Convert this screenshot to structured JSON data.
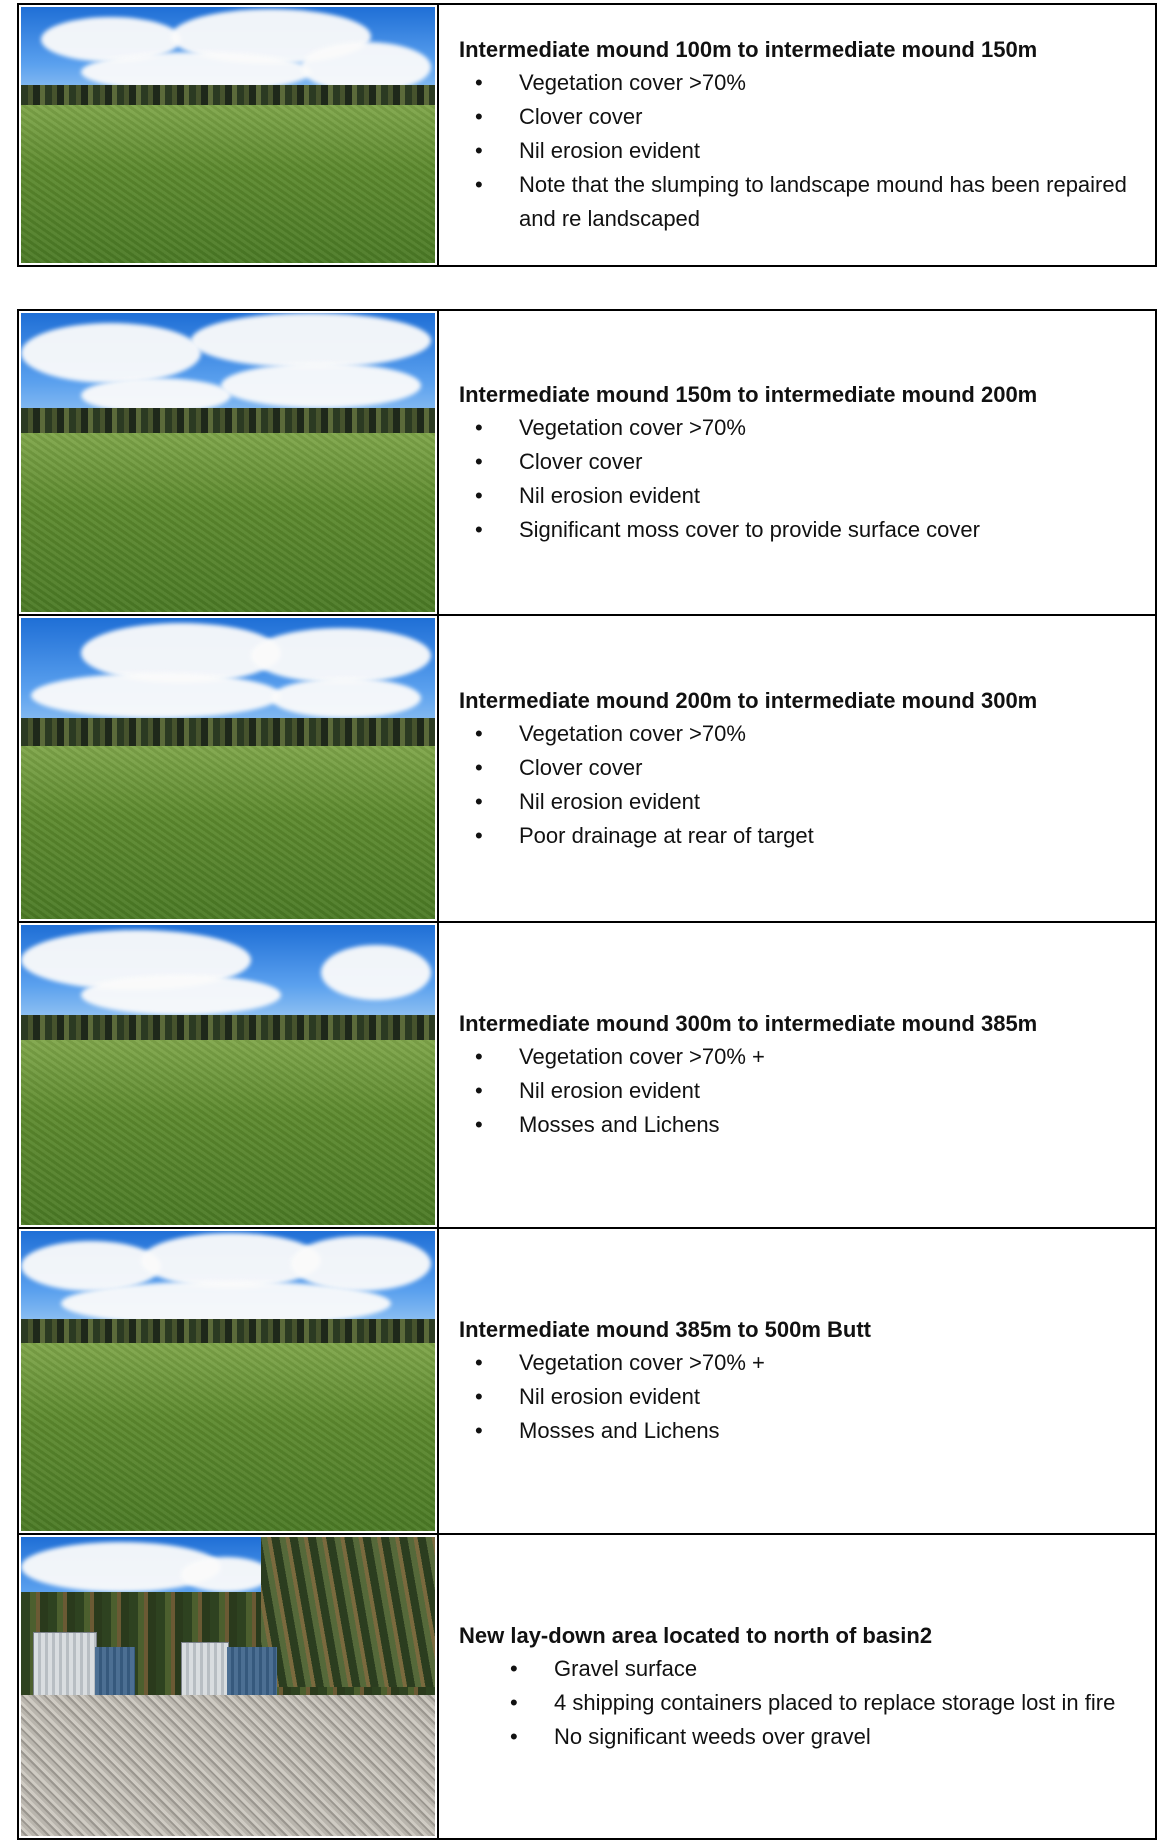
{
  "rows": [
    {
      "photo": "grass-field-photo",
      "heading": "Intermediate mound 100m to intermediate mound 150m",
      "bullets": [
        "Vegetation cover >70%",
        "Clover cover",
        "Nil erosion evident",
        "Note that the slumping to landscape mound has been repaired and re landscaped"
      ]
    },
    {
      "photo": "grass-field-photo",
      "heading": "Intermediate mound 150m to intermediate mound 200m",
      "bullets": [
        "Vegetation cover >70%",
        "Clover cover",
        "Nil erosion evident",
        "Significant moss cover to provide surface cover"
      ]
    },
    {
      "photo": "grass-field-photo",
      "heading": "Intermediate mound 200m to intermediate mound 300m",
      "bullets": [
        "Vegetation cover >70%",
        "Clover cover",
        "Nil erosion evident",
        "Poor drainage at rear of target"
      ]
    },
    {
      "photo": "grass-field-photo",
      "heading": "Intermediate mound 300m to intermediate mound 385m",
      "bullets": [
        "Vegetation cover >70% +",
        "Nil erosion evident",
        "Mosses and Lichens"
      ]
    },
    {
      "photo": "grass-field-photo",
      "heading": "Intermediate mound 385m to 500m Butt",
      "bullets": [
        "Vegetation cover >70% +",
        "Nil erosion evident",
        "Mosses and Lichens"
      ]
    },
    {
      "photo": "gravel-laydown-photo",
      "heading": "New lay-down area  located to north of basin2",
      "bullets": [
        "Gravel surface",
        "4 shipping containers placed to  replace storage lost in fire",
        "No significant weeds over gravel"
      ]
    }
  ]
}
